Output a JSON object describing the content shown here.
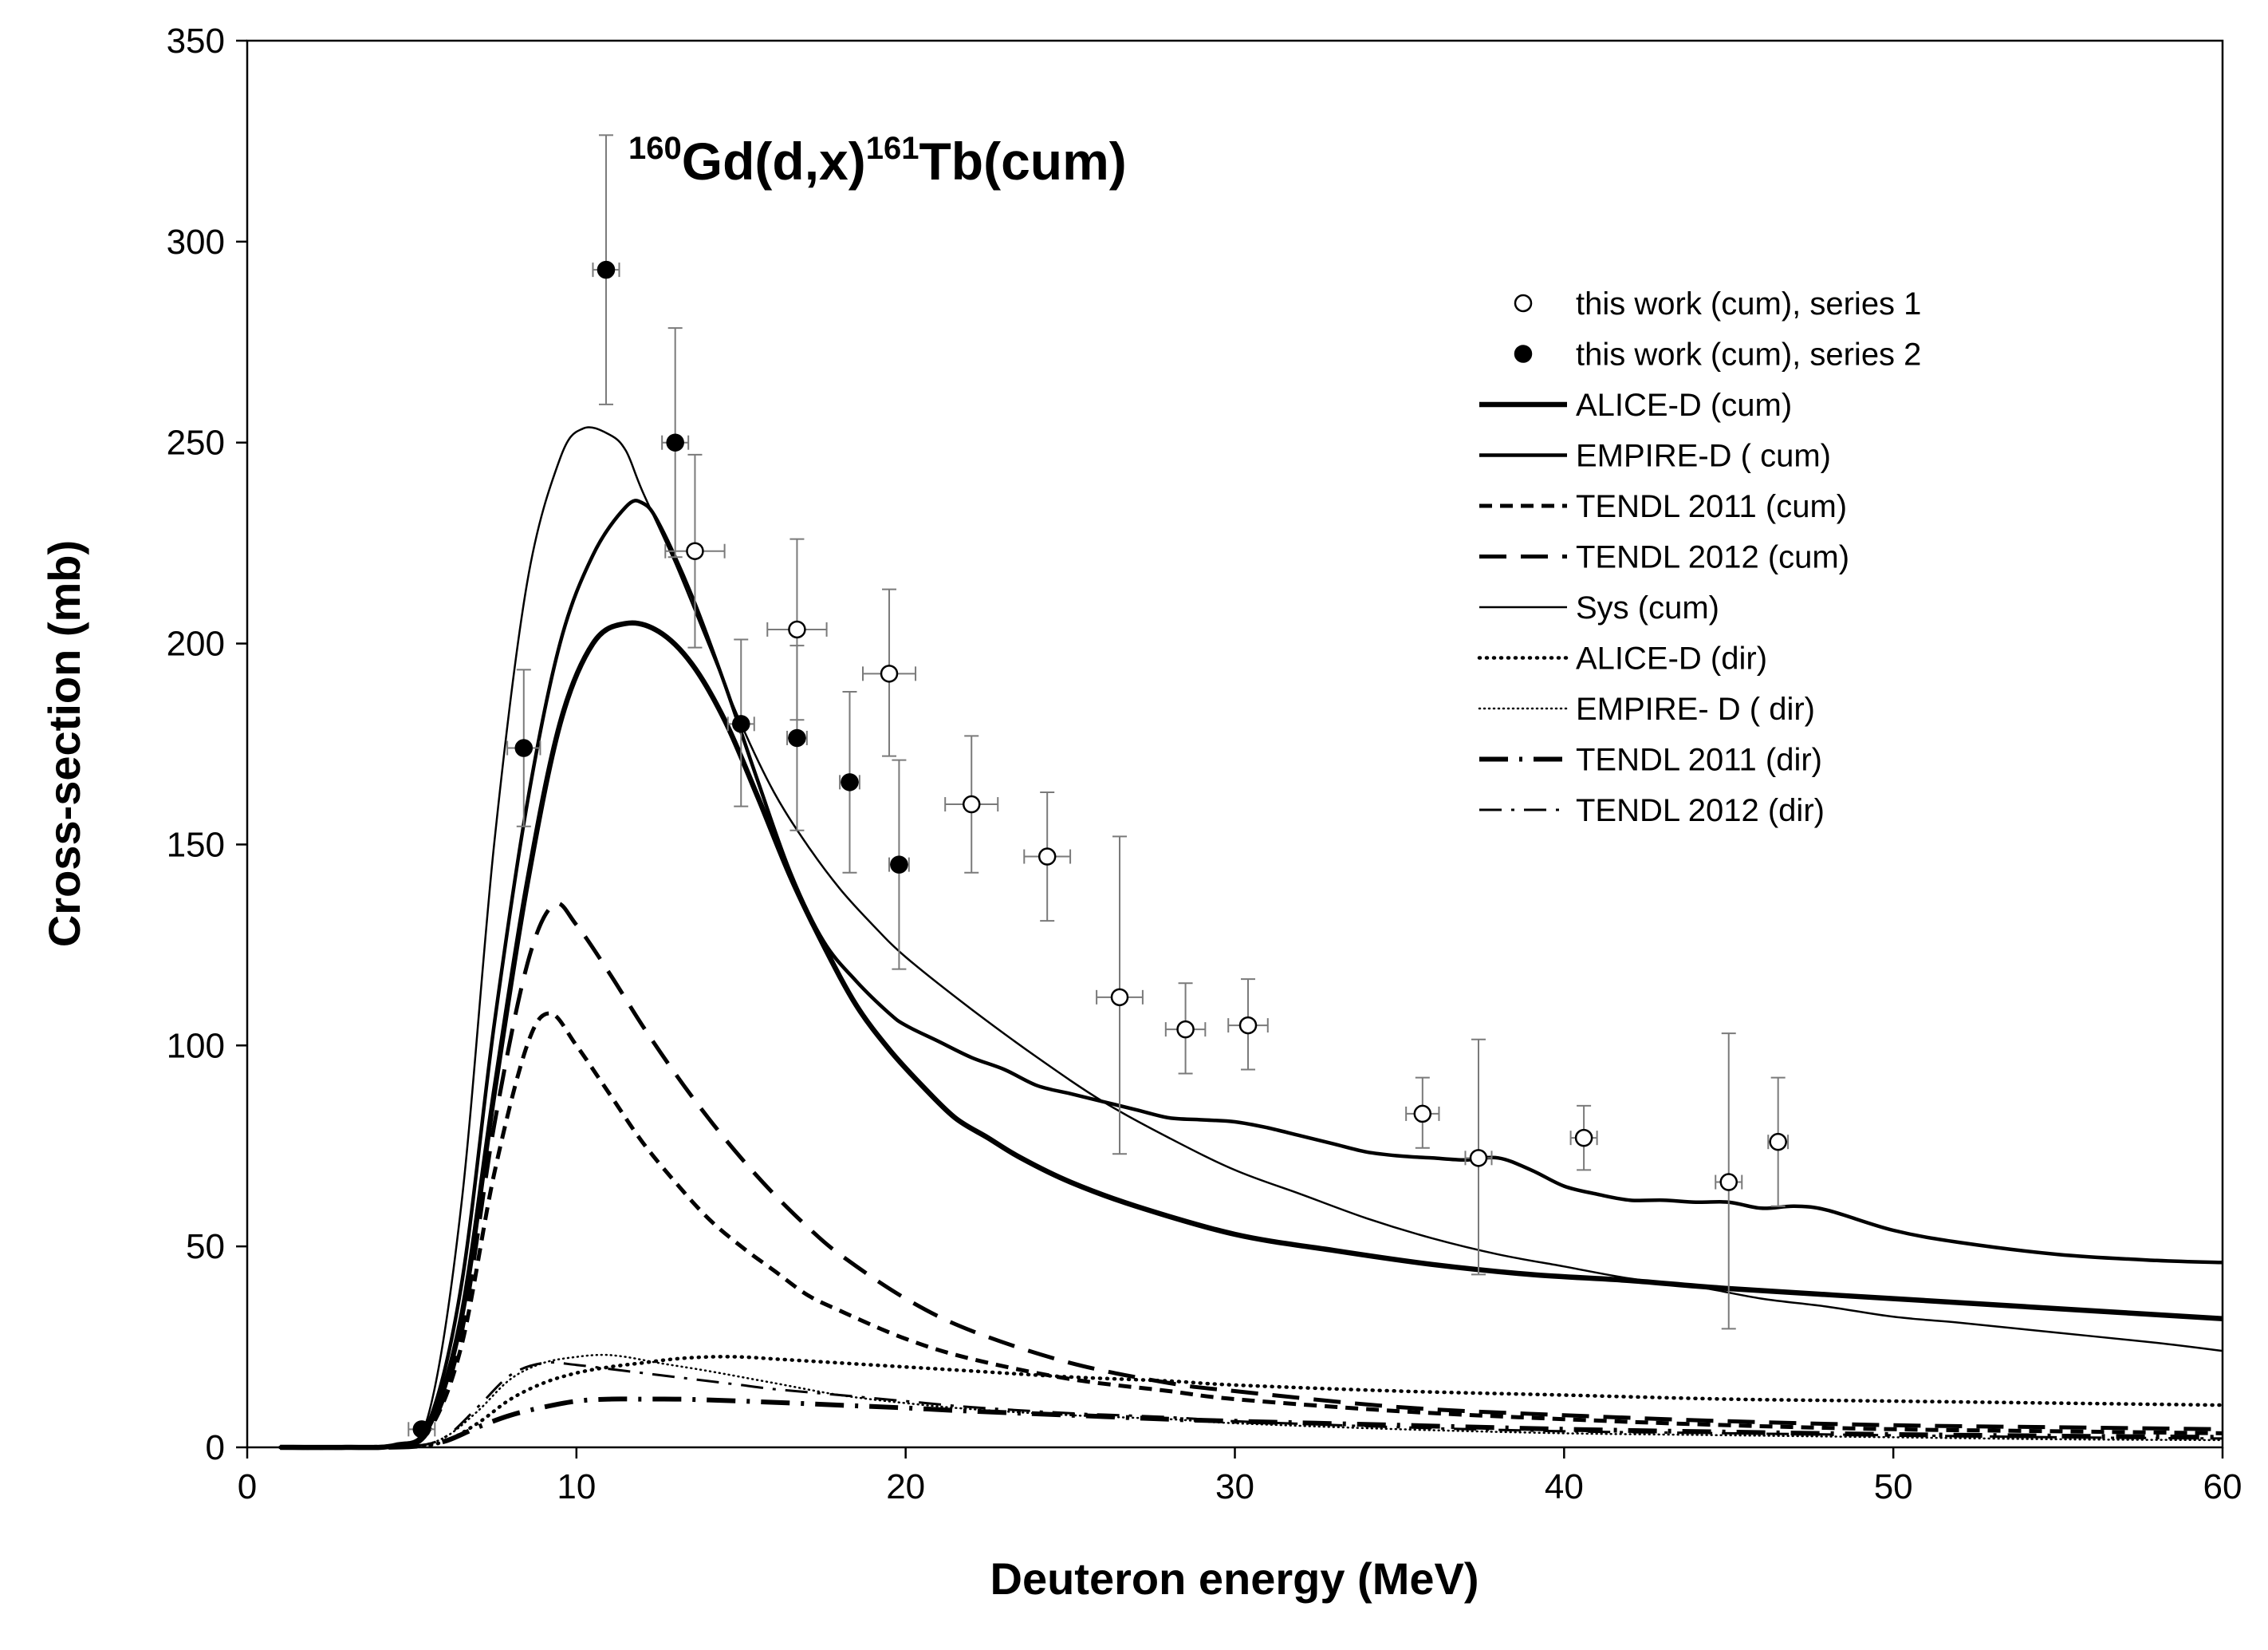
{
  "chart_data": {
    "type": "line",
    "title": {
      "pre_sup": "160",
      "part1": "Gd(d,x)",
      "mid_sup": "161",
      "part2": "Tb(cum)"
    },
    "xlabel": "Deuteron energy (MeV)",
    "ylabel": "Cross-section (mb)",
    "xlim": [
      0,
      60
    ],
    "ylim": [
      0,
      350
    ],
    "xticks": [
      0,
      10,
      20,
      30,
      40,
      50,
      60
    ],
    "yticks": [
      0,
      50,
      100,
      150,
      200,
      250,
      300,
      350
    ],
    "legend_position": "top-right",
    "points": [
      {
        "name": "this work (cum), series 1",
        "marker": "open-circle",
        "data": [
          {
            "x": 13.6,
            "y": 223,
            "xerr": 0.9,
            "ylo": 199,
            "yhi": 247
          },
          {
            "x": 16.7,
            "y": 203.5,
            "xerr": 0.9,
            "ylo": 181,
            "yhi": 226
          },
          {
            "x": 19.5,
            "y": 192.5,
            "xerr": 0.8,
            "ylo": 172,
            "yhi": 213.5
          },
          {
            "x": 22.0,
            "y": 160,
            "xerr": 0.8,
            "ylo": 143,
            "yhi": 177
          },
          {
            "x": 24.3,
            "y": 147,
            "xerr": 0.7,
            "ylo": 131,
            "yhi": 163
          },
          {
            "x": 26.5,
            "y": 112,
            "xerr": 0.7,
            "ylo": 73,
            "yhi": 152
          },
          {
            "x": 28.5,
            "y": 104,
            "xerr": 0.6,
            "ylo": 93,
            "yhi": 115.5
          },
          {
            "x": 30.4,
            "y": 105,
            "xerr": 0.6,
            "ylo": 94,
            "yhi": 116.5
          },
          {
            "x": 35.7,
            "y": 83,
            "xerr": 0.5,
            "ylo": 74.5,
            "yhi": 92
          },
          {
            "x": 37.4,
            "y": 72,
            "xerr": 0.4,
            "ylo": 43,
            "yhi": 101.5
          },
          {
            "x": 40.6,
            "y": 77,
            "xerr": 0.4,
            "ylo": 69,
            "yhi": 85
          },
          {
            "x": 45.0,
            "y": 66,
            "xerr": 0.4,
            "ylo": 29.5,
            "yhi": 103
          },
          {
            "x": 46.5,
            "y": 76,
            "xerr": 0.3,
            "ylo": 60,
            "yhi": 92
          }
        ]
      },
      {
        "name": "this work (cum), series 2",
        "marker": "filled-circle",
        "data": [
          {
            "x": 5.3,
            "y": 4.5,
            "xerr": 0.4,
            "ylo": 3.5,
            "yhi": 5.5
          },
          {
            "x": 8.4,
            "y": 174,
            "xerr": 0.5,
            "ylo": 154.5,
            "yhi": 193.5
          },
          {
            "x": 10.9,
            "y": 293,
            "xerr": 0.4,
            "ylo": 259.5,
            "yhi": 326.5
          },
          {
            "x": 13.0,
            "y": 250,
            "xerr": 0.4,
            "ylo": 221.5,
            "yhi": 278.5
          },
          {
            "x": 15.0,
            "y": 180,
            "xerr": 0.4,
            "ylo": 159.5,
            "yhi": 201
          },
          {
            "x": 16.7,
            "y": 176.5,
            "xerr": 0.3,
            "ylo": 153.5,
            "yhi": 199.5
          },
          {
            "x": 18.3,
            "y": 165.5,
            "xerr": 0.3,
            "ylo": 143,
            "yhi": 188
          },
          {
            "x": 19.8,
            "y": 145,
            "xerr": 0.3,
            "ylo": 119,
            "yhi": 171
          }
        ]
      }
    ],
    "series": [
      {
        "name": "ALICE-D (cum)",
        "style": "solid-thick",
        "x": [
          1,
          3,
          4.5,
          5.5,
          6.5,
          7.5,
          8.5,
          9.5,
          10.5,
          11.5,
          12.5,
          13.5,
          14.5,
          15.5,
          16.5,
          17.5,
          18.5,
          19.5,
          20.5,
          21.5,
          22.5,
          23.5,
          25,
          27,
          30,
          33,
          36,
          39,
          42,
          45,
          50,
          55,
          60
        ],
        "y": [
          0,
          0,
          0.5,
          5,
          32,
          88,
          140,
          180,
          200,
          205,
          203,
          195,
          181,
          162,
          142,
          125,
          110,
          99,
          90,
          82,
          77,
          72,
          66,
          60,
          53,
          49,
          45.5,
          43,
          41.5,
          39.5,
          37,
          34.5,
          32
        ]
      },
      {
        "name": "EMPIRE-D ( cum)",
        "style": "solid-medium",
        "x": [
          1,
          3,
          4.5,
          5.5,
          6.5,
          7.5,
          8.5,
          9.5,
          10.5,
          11.5,
          12,
          12.5,
          13.5,
          14.5,
          15.5,
          16.5,
          17.5,
          18.5,
          19.5,
          20,
          21,
          22,
          23,
          24,
          25,
          26,
          27,
          28,
          29,
          30,
          31,
          32,
          33,
          34,
          35,
          36,
          37,
          38,
          39,
          40,
          41,
          42,
          43,
          44,
          45,
          46,
          47,
          48,
          50,
          52,
          55,
          58,
          60
        ],
        "y": [
          0,
          0,
          0.5,
          6,
          40,
          105,
          160,
          200,
          222,
          234,
          235,
          230,
          212,
          190,
          166,
          143,
          126,
          116,
          108,
          105,
          101,
          97,
          94,
          90,
          88,
          86,
          84,
          82,
          81.5,
          81,
          79.5,
          77.5,
          75.5,
          73.5,
          72.5,
          72,
          71.5,
          72,
          69,
          65,
          63,
          61.5,
          61.5,
          61,
          61,
          59.5,
          60,
          59,
          54,
          51,
          48,
          46.5,
          46
        ]
      },
      {
        "name": "TENDL 2011 (cum)",
        "style": "dash-short",
        "x": [
          1,
          3,
          4.5,
          5.5,
          6.5,
          7.5,
          8.5,
          9.2,
          10,
          11,
          12,
          13,
          14,
          15,
          16,
          17,
          18,
          20,
          22,
          25,
          28,
          30,
          35,
          40,
          45,
          50,
          55,
          60
        ],
        "y": [
          0,
          0,
          0.5,
          4,
          25,
          68,
          100,
          108,
          100,
          88,
          76,
          66,
          57,
          50,
          44,
          38,
          34,
          27,
          22,
          17,
          14,
          12,
          9,
          7,
          5.5,
          4.5,
          4,
          3.5
        ]
      },
      {
        "name": "TENDL 2012 (cum)",
        "style": "dash-long",
        "x": [
          1,
          3,
          4.5,
          5.5,
          6.5,
          7.5,
          8.5,
          9.3,
          10,
          11,
          12,
          13,
          14,
          15,
          16,
          17,
          18,
          20,
          22,
          25,
          28,
          30,
          35,
          40,
          45,
          50,
          55,
          60
        ],
        "y": [
          0,
          0,
          0.5,
          4,
          28,
          80,
          120,
          135,
          130,
          118,
          105,
          93,
          82,
          72,
          63,
          55,
          48,
          37,
          29,
          21,
          16,
          14,
          10,
          8,
          6.5,
          5.5,
          5,
          4.5
        ]
      },
      {
        "name": "Sys (cum)",
        "style": "solid-thin",
        "x": [
          1,
          3,
          4.5,
          5.5,
          6.5,
          7.5,
          8.5,
          9.5,
          10.2,
          11,
          11.5,
          12,
          13,
          14,
          15,
          16,
          17,
          18,
          19,
          20,
          22,
          24,
          26,
          28,
          30,
          32,
          34,
          36,
          38,
          40,
          42,
          44,
          46,
          48,
          50,
          52,
          55,
          58,
          60
        ],
        "y": [
          0,
          0,
          0.5,
          8,
          60,
          150,
          215,
          246,
          253.5,
          252,
          248,
          238,
          220,
          200,
          180,
          163,
          150,
          139,
          130,
          122,
          109,
          97,
          86,
          77,
          69,
          63,
          57,
          52,
          48,
          45,
          42,
          40,
          37,
          35,
          32.5,
          31,
          28.5,
          26,
          24
        ]
      },
      {
        "name": "ALICE-D (dir)",
        "style": "dot-bold",
        "x": [
          1,
          3,
          5,
          6,
          7,
          8,
          9,
          10,
          11,
          12,
          13,
          14,
          15,
          16,
          17,
          18,
          20,
          22,
          25,
          28,
          30,
          35,
          40,
          45,
          50,
          55,
          60
        ],
        "y": [
          0,
          0,
          0.2,
          1.5,
          6,
          12,
          16,
          18.5,
          20,
          21,
          22,
          22.5,
          22.5,
          22,
          21.5,
          21,
          20,
          19,
          17.5,
          16.5,
          15.5,
          14,
          13,
          12,
          11.5,
          11,
          10.5
        ]
      },
      {
        "name": "EMPIRE- D ( dir)",
        "style": "dot-fine",
        "x": [
          1,
          3,
          5,
          6,
          7,
          8,
          9,
          10,
          10.8,
          11.5,
          12.5,
          14,
          16,
          18,
          20,
          22,
          25,
          28,
          30,
          35,
          40,
          45,
          50,
          55,
          60
        ],
        "y": [
          0,
          0,
          0.3,
          2.5,
          9,
          17,
          21,
          22.5,
          23,
          22.5,
          21,
          19,
          16,
          13,
          11,
          9.5,
          8,
          7,
          6,
          4.5,
          3.5,
          3,
          2.5,
          2,
          1.8
        ]
      },
      {
        "name": "TENDL 2011 (dir)",
        "style": "dash-dot-thick",
        "x": [
          1,
          3,
          5,
          6,
          7,
          8,
          9,
          10,
          11,
          12,
          13,
          14,
          16,
          18,
          20,
          22,
          25,
          28,
          30,
          35,
          40,
          45,
          50,
          55,
          60
        ],
        "y": [
          0,
          0,
          0.2,
          1.5,
          5,
          8,
          10,
          11.5,
          12,
          12,
          12,
          11.8,
          11.2,
          10.5,
          9.8,
          9,
          8,
          7,
          6.5,
          5.5,
          4.5,
          3.8,
          3.2,
          2.8,
          2.5
        ]
      },
      {
        "name": "TENDL 2012 (dir)",
        "style": "dash-dot-thin",
        "x": [
          1,
          3,
          5,
          6,
          7,
          8,
          9,
          10,
          11,
          12,
          13,
          14,
          15,
          16,
          18,
          20,
          22,
          25,
          28,
          30,
          35,
          40,
          45,
          50,
          55,
          60
        ],
        "y": [
          0,
          0,
          0.3,
          2.5,
          10,
          18,
          21,
          20.5,
          19.5,
          18.5,
          17.5,
          16.5,
          15.5,
          14.5,
          13,
          11.5,
          10,
          8.5,
          7.5,
          6.5,
          5,
          4,
          3.5,
          3,
          2.5,
          2.2
        ]
      }
    ]
  }
}
